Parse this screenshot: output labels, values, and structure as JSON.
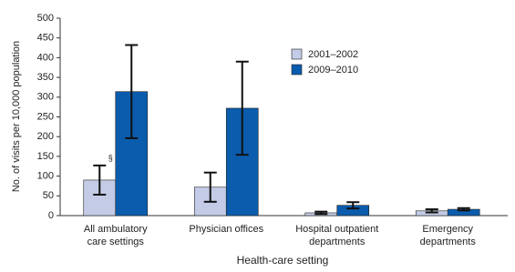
{
  "chart_data": {
    "type": "bar",
    "categories": [
      [
        "All ambulatory",
        "care settings"
      ],
      [
        "Physician offices"
      ],
      [
        "Hospital outpatient",
        "departments"
      ],
      [
        "Emergency",
        "departments"
      ]
    ],
    "series": [
      {
        "name": "2001–2002",
        "color": "#c3cbe6",
        "values": [
          90,
          72,
          7,
          12
        ],
        "errors": [
          37,
          37,
          3,
          4
        ]
      },
      {
        "name": "2009–2010",
        "color": "#0b5cad",
        "values": [
          314,
          272,
          26,
          16
        ],
        "errors": [
          118,
          118,
          8,
          3
        ]
      }
    ],
    "ylim": [
      0,
      500
    ],
    "yticks": [
      0,
      50,
      100,
      150,
      200,
      250,
      300,
      350,
      400,
      450,
      500
    ],
    "ylabel": "No. of visits per 10,000 population",
    "xlabel": "Health-care setting",
    "annotation": "§"
  }
}
